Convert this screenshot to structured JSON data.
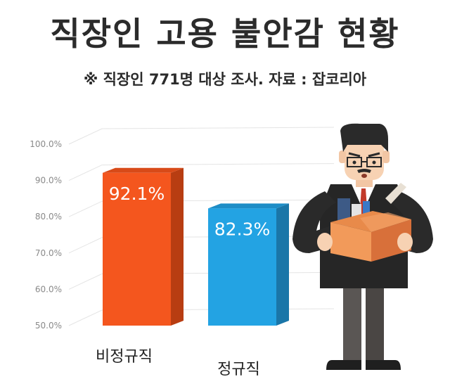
{
  "title": "직장인 고용 불안감 현황",
  "subtitle": "※ 직장인 771명 대상 조사. 자료 : 잡코리아",
  "chart_data": {
    "type": "bar",
    "categories": [
      "비정규직",
      "정규직"
    ],
    "values": [
      92.1,
      82.3
    ],
    "value_labels": [
      "92.1%",
      "82.3%"
    ],
    "ylim": [
      50,
      100
    ],
    "yticks": [
      "50.0%",
      "60.0%",
      "70.0%",
      "80.0%",
      "90.0%",
      "100.0%"
    ],
    "grid": true,
    "colors": [
      "#f4561e",
      "#23a3e3"
    ],
    "side_colors": [
      "#b83d12",
      "#1a76a8"
    ],
    "top_colors": [
      "#d84a18",
      "#1e8dc6"
    ]
  },
  "illustration": {
    "icon": "worried-office-worker-holding-box-icon"
  }
}
